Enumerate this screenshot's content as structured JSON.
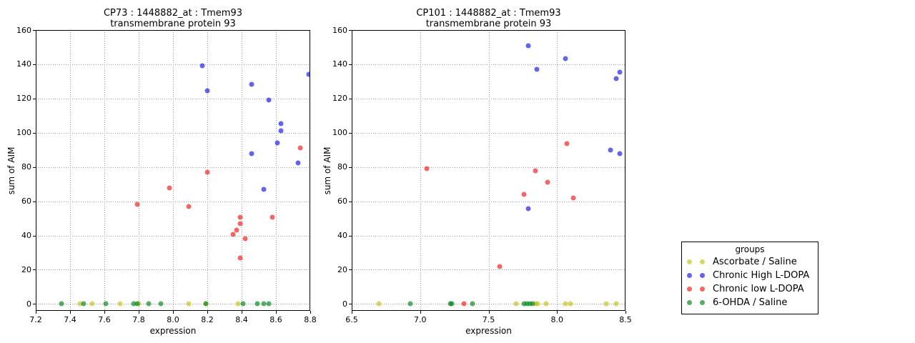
{
  "colors": {
    "yellow": "rgba(190,190,10,0.62)",
    "blue": "rgba(5,5,220,0.62)",
    "red": "rgba(235,10,10,0.62)",
    "green": "rgba(0,130,25,0.66)",
    "grid": "#999999",
    "axis": "#000000",
    "background": "#ffffff"
  },
  "legend": {
    "title": "groups",
    "entries": [
      {
        "label": "Ascorbate / Saline",
        "color_key": "yellow"
      },
      {
        "label": "Chronic High L-DOPA",
        "color_key": "blue"
      },
      {
        "label": "Chronic low L-DOPA",
        "color_key": "red"
      },
      {
        "label": "6-OHDA / Saline",
        "color_key": "green"
      }
    ]
  },
  "chart_data": [
    {
      "type": "scatter",
      "title": "CP73 : 1448882_at : Tmem93",
      "subtitle": "transmembrane protein 93",
      "xlabel": "expression",
      "ylabel": "sum of AIM",
      "xlim": [
        7.2,
        8.8
      ],
      "ylim": [
        0,
        160
      ],
      "xticks": [
        7.2,
        7.4,
        7.6,
        7.8,
        8.0,
        8.2,
        8.4,
        8.6,
        8.8
      ],
      "yticks": [
        0,
        20,
        40,
        60,
        80,
        100,
        120,
        140,
        160
      ],
      "grid": true,
      "series": [
        {
          "name": "Ascorbate / Saline",
          "color_key": "yellow",
          "points": [
            [
              7.46,
              0
            ],
            [
              7.53,
              0
            ],
            [
              7.69,
              0
            ],
            [
              7.8,
              0
            ],
            [
              8.09,
              0
            ],
            [
              8.19,
              0
            ],
            [
              8.38,
              0
            ]
          ]
        },
        {
          "name": "Chronic High L-DOPA",
          "color_key": "blue",
          "points": [
            [
              8.17,
              139
            ],
            [
              8.2,
              124.5
            ],
            [
              8.46,
              128.5
            ],
            [
              8.46,
              88
            ],
            [
              8.53,
              67
            ],
            [
              8.56,
              119
            ],
            [
              8.61,
              94
            ],
            [
              8.63,
              105.5
            ],
            [
              8.63,
              101
            ],
            [
              8.73,
              82.5
            ],
            [
              8.79,
              134
            ]
          ]
        },
        {
          "name": "Chronic low L-DOPA",
          "color_key": "red",
          "points": [
            [
              7.79,
              58
            ],
            [
              7.98,
              68
            ],
            [
              8.09,
              57
            ],
            [
              8.2,
              77
            ],
            [
              8.35,
              40.5
            ],
            [
              8.37,
              43
            ],
            [
              8.39,
              47
            ],
            [
              8.39,
              50.5
            ],
            [
              8.39,
              27
            ],
            [
              8.42,
              38
            ],
            [
              8.58,
              50.5
            ],
            [
              8.74,
              91
            ]
          ]
        },
        {
          "name": "6-OHDA / Saline",
          "color_key": "green",
          "points": [
            [
              7.35,
              0
            ],
            [
              7.48,
              0
            ],
            [
              7.61,
              0
            ],
            [
              7.77,
              0
            ],
            [
              7.79,
              0
            ],
            [
              7.86,
              0
            ],
            [
              7.93,
              0
            ],
            [
              8.19,
              0
            ],
            [
              8.41,
              0
            ],
            [
              8.49,
              0
            ],
            [
              8.53,
              0
            ],
            [
              8.56,
              0
            ]
          ]
        }
      ]
    },
    {
      "type": "scatter",
      "title": "CP101 : 1448882_at : Tmem93",
      "subtitle": "transmembrane protein 93",
      "xlabel": "expression",
      "ylabel": "sum of AIM",
      "xlim": [
        6.5,
        8.5
      ],
      "ylim": [
        0,
        160
      ],
      "xticks": [
        6.5,
        7.0,
        7.5,
        8.0,
        8.5
      ],
      "yticks": [
        0,
        20,
        40,
        60,
        80,
        100,
        120,
        140,
        160
      ],
      "grid": true,
      "series": [
        {
          "name": "Ascorbate / Saline",
          "color_key": "yellow",
          "points": [
            [
              6.7,
              0
            ],
            [
              7.7,
              0
            ],
            [
              7.84,
              0
            ],
            [
              7.86,
              0
            ],
            [
              7.92,
              0
            ],
            [
              8.06,
              0
            ],
            [
              8.1,
              0
            ],
            [
              8.36,
              0
            ],
            [
              8.43,
              0
            ]
          ]
        },
        {
          "name": "Chronic High L-DOPA",
          "color_key": "blue",
          "points": [
            [
              7.79,
              151
            ],
            [
              7.79,
              55.5
            ],
            [
              7.85,
              137
            ],
            [
              8.06,
              143.5
            ],
            [
              8.39,
              90
            ],
            [
              8.43,
              131.5
            ],
            [
              8.46,
              135.5
            ],
            [
              8.46,
              88
            ]
          ]
        },
        {
          "name": "Chronic low L-DOPA",
          "color_key": "red",
          "points": [
            [
              7.05,
              79
            ],
            [
              7.32,
              0
            ],
            [
              7.58,
              22
            ],
            [
              7.76,
              64
            ],
            [
              7.84,
              78
            ],
            [
              7.93,
              71
            ],
            [
              8.07,
              93.5
            ],
            [
              8.12,
              62
            ]
          ]
        },
        {
          "name": "6-OHDA / Saline",
          "color_key": "green",
          "points": [
            [
              6.93,
              0
            ],
            [
              7.22,
              0
            ],
            [
              7.23,
              0
            ],
            [
              7.38,
              0
            ],
            [
              7.76,
              0
            ],
            [
              7.78,
              0
            ],
            [
              7.8,
              0
            ],
            [
              7.82,
              0
            ]
          ]
        }
      ]
    }
  ]
}
